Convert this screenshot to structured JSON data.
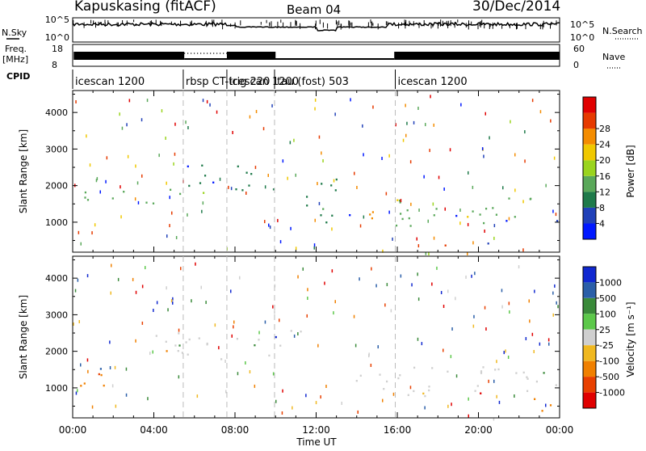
{
  "header": {
    "station": "Kapuskasing (fitACF)",
    "beam": "Beam 04",
    "date": "30/Dec/2014"
  },
  "left_labels": {
    "nsky": "N.Sky",
    "freq_line1": "Freq.",
    "freq_line2": "[MHz]",
    "cpid": "CPID"
  },
  "right_labels": {
    "nsearch": "N.Search",
    "nave": "Nave"
  },
  "noise_panel": {
    "left_ticks": [
      "10^5",
      "10^0"
    ],
    "right_ticks": [
      "10^5",
      "10^0"
    ]
  },
  "freq_panel": {
    "left_ticks": [
      "18",
      "8"
    ],
    "right_ticks": [
      "60",
      "0"
    ]
  },
  "cpid_segments": [
    {
      "label": "icescan 1200",
      "start_hour": 0
    },
    {
      "label": "rbsp CT-trig 220",
      "start_hour": 5.45
    },
    {
      "label": "icescan 1200",
      "start_hour": 7.6
    },
    {
      "label": "tau (fost) 503",
      "start_hour": 9.95
    },
    {
      "label": "icescan 1200",
      "start_hour": 15.9
    }
  ],
  "x_axis": {
    "title": "Time UT",
    "tick_labels": [
      "00:00",
      "04:00",
      "08:00",
      "12:00",
      "16:00",
      "20:00",
      "00:00"
    ]
  },
  "power_panel": {
    "ylabel": "Slant Range [km]",
    "y_ticks": [
      "1000",
      "2000",
      "3000",
      "4000"
    ],
    "colorbar_label": "Power [dB]",
    "colorbar_ticks": [
      "4",
      "8",
      "12",
      "16",
      "20",
      "24",
      "28"
    ],
    "colors": [
      "#0018ff",
      "#2040b8",
      "#1f7a4a",
      "#5aa85a",
      "#9ad41e",
      "#f0c800",
      "#f48c00",
      "#e63a00",
      "#e00000"
    ]
  },
  "velocity_panel": {
    "ylabel": "Slant Range [km]",
    "y_ticks": [
      "1000",
      "2000",
      "3000",
      "4000"
    ],
    "colorbar_label": "Velocity [m s⁻¹]",
    "colorbar_ticks": [
      "1000",
      "500",
      "100",
      "25",
      "-25",
      "-100",
      "-500",
      "-1000"
    ],
    "colors": [
      "#1028d0",
      "#2a5ea8",
      "#3a8a3a",
      "#5cc84a",
      "#cfcfcf",
      "#f0b820",
      "#f08000",
      "#e84000",
      "#e00000"
    ]
  },
  "chart_data": {
    "type": "heatmap",
    "title": "Kapuskasing (fitACF)",
    "xlabel": "Time UT",
    "ylabel": "Slant Range [km]",
    "xlim": [
      0,
      24
    ],
    "ylim": [
      180,
      4600
    ],
    "x_ticks": [
      0,
      4,
      8,
      12,
      16,
      20,
      24
    ],
    "y_ticks": [
      1000,
      2000,
      3000,
      4000
    ],
    "panels": [
      {
        "name": "Power [dB]",
        "scale_ticks": [
          4,
          8,
          12,
          16,
          20,
          24,
          28
        ],
        "regions": [
          {
            "t0": 0.3,
            "t1": 5.5,
            "r0": 1500,
            "r1": 1950,
            "level": 12
          },
          {
            "t0": 5.5,
            "t1": 10.0,
            "r0": 1800,
            "r1": 2600,
            "level": 8
          },
          {
            "t0": 11.5,
            "t1": 13.3,
            "r0": 1000,
            "r1": 2400,
            "level": 8
          },
          {
            "t0": 13.3,
            "t1": 15.0,
            "r0": 900,
            "r1": 1500,
            "level": 24
          },
          {
            "t0": 15.8,
            "t1": 24.0,
            "r0": 900,
            "r1": 1700,
            "level": 12
          },
          {
            "t0": 17.5,
            "t1": 21.0,
            "r0": 380,
            "r1": 560,
            "level": 28
          }
        ]
      },
      {
        "name": "Velocity [m s⁻¹]",
        "scale_ticks": [
          1000,
          500,
          100,
          25,
          -25,
          -100,
          -500,
          -1000
        ],
        "regions": [
          {
            "t0": 0.0,
            "t1": 1.8,
            "r0": 900,
            "r1": 1800,
            "level": -300
          },
          {
            "t0": 4.0,
            "t1": 11.5,
            "r0": 1800,
            "r1": 2600,
            "level": 0
          },
          {
            "t0": 13.5,
            "t1": 24.0,
            "r0": 800,
            "r1": 1600,
            "level": 0
          },
          {
            "t0": 22.5,
            "t1": 24.0,
            "r0": 350,
            "r1": 800,
            "level": -300
          }
        ]
      }
    ]
  }
}
